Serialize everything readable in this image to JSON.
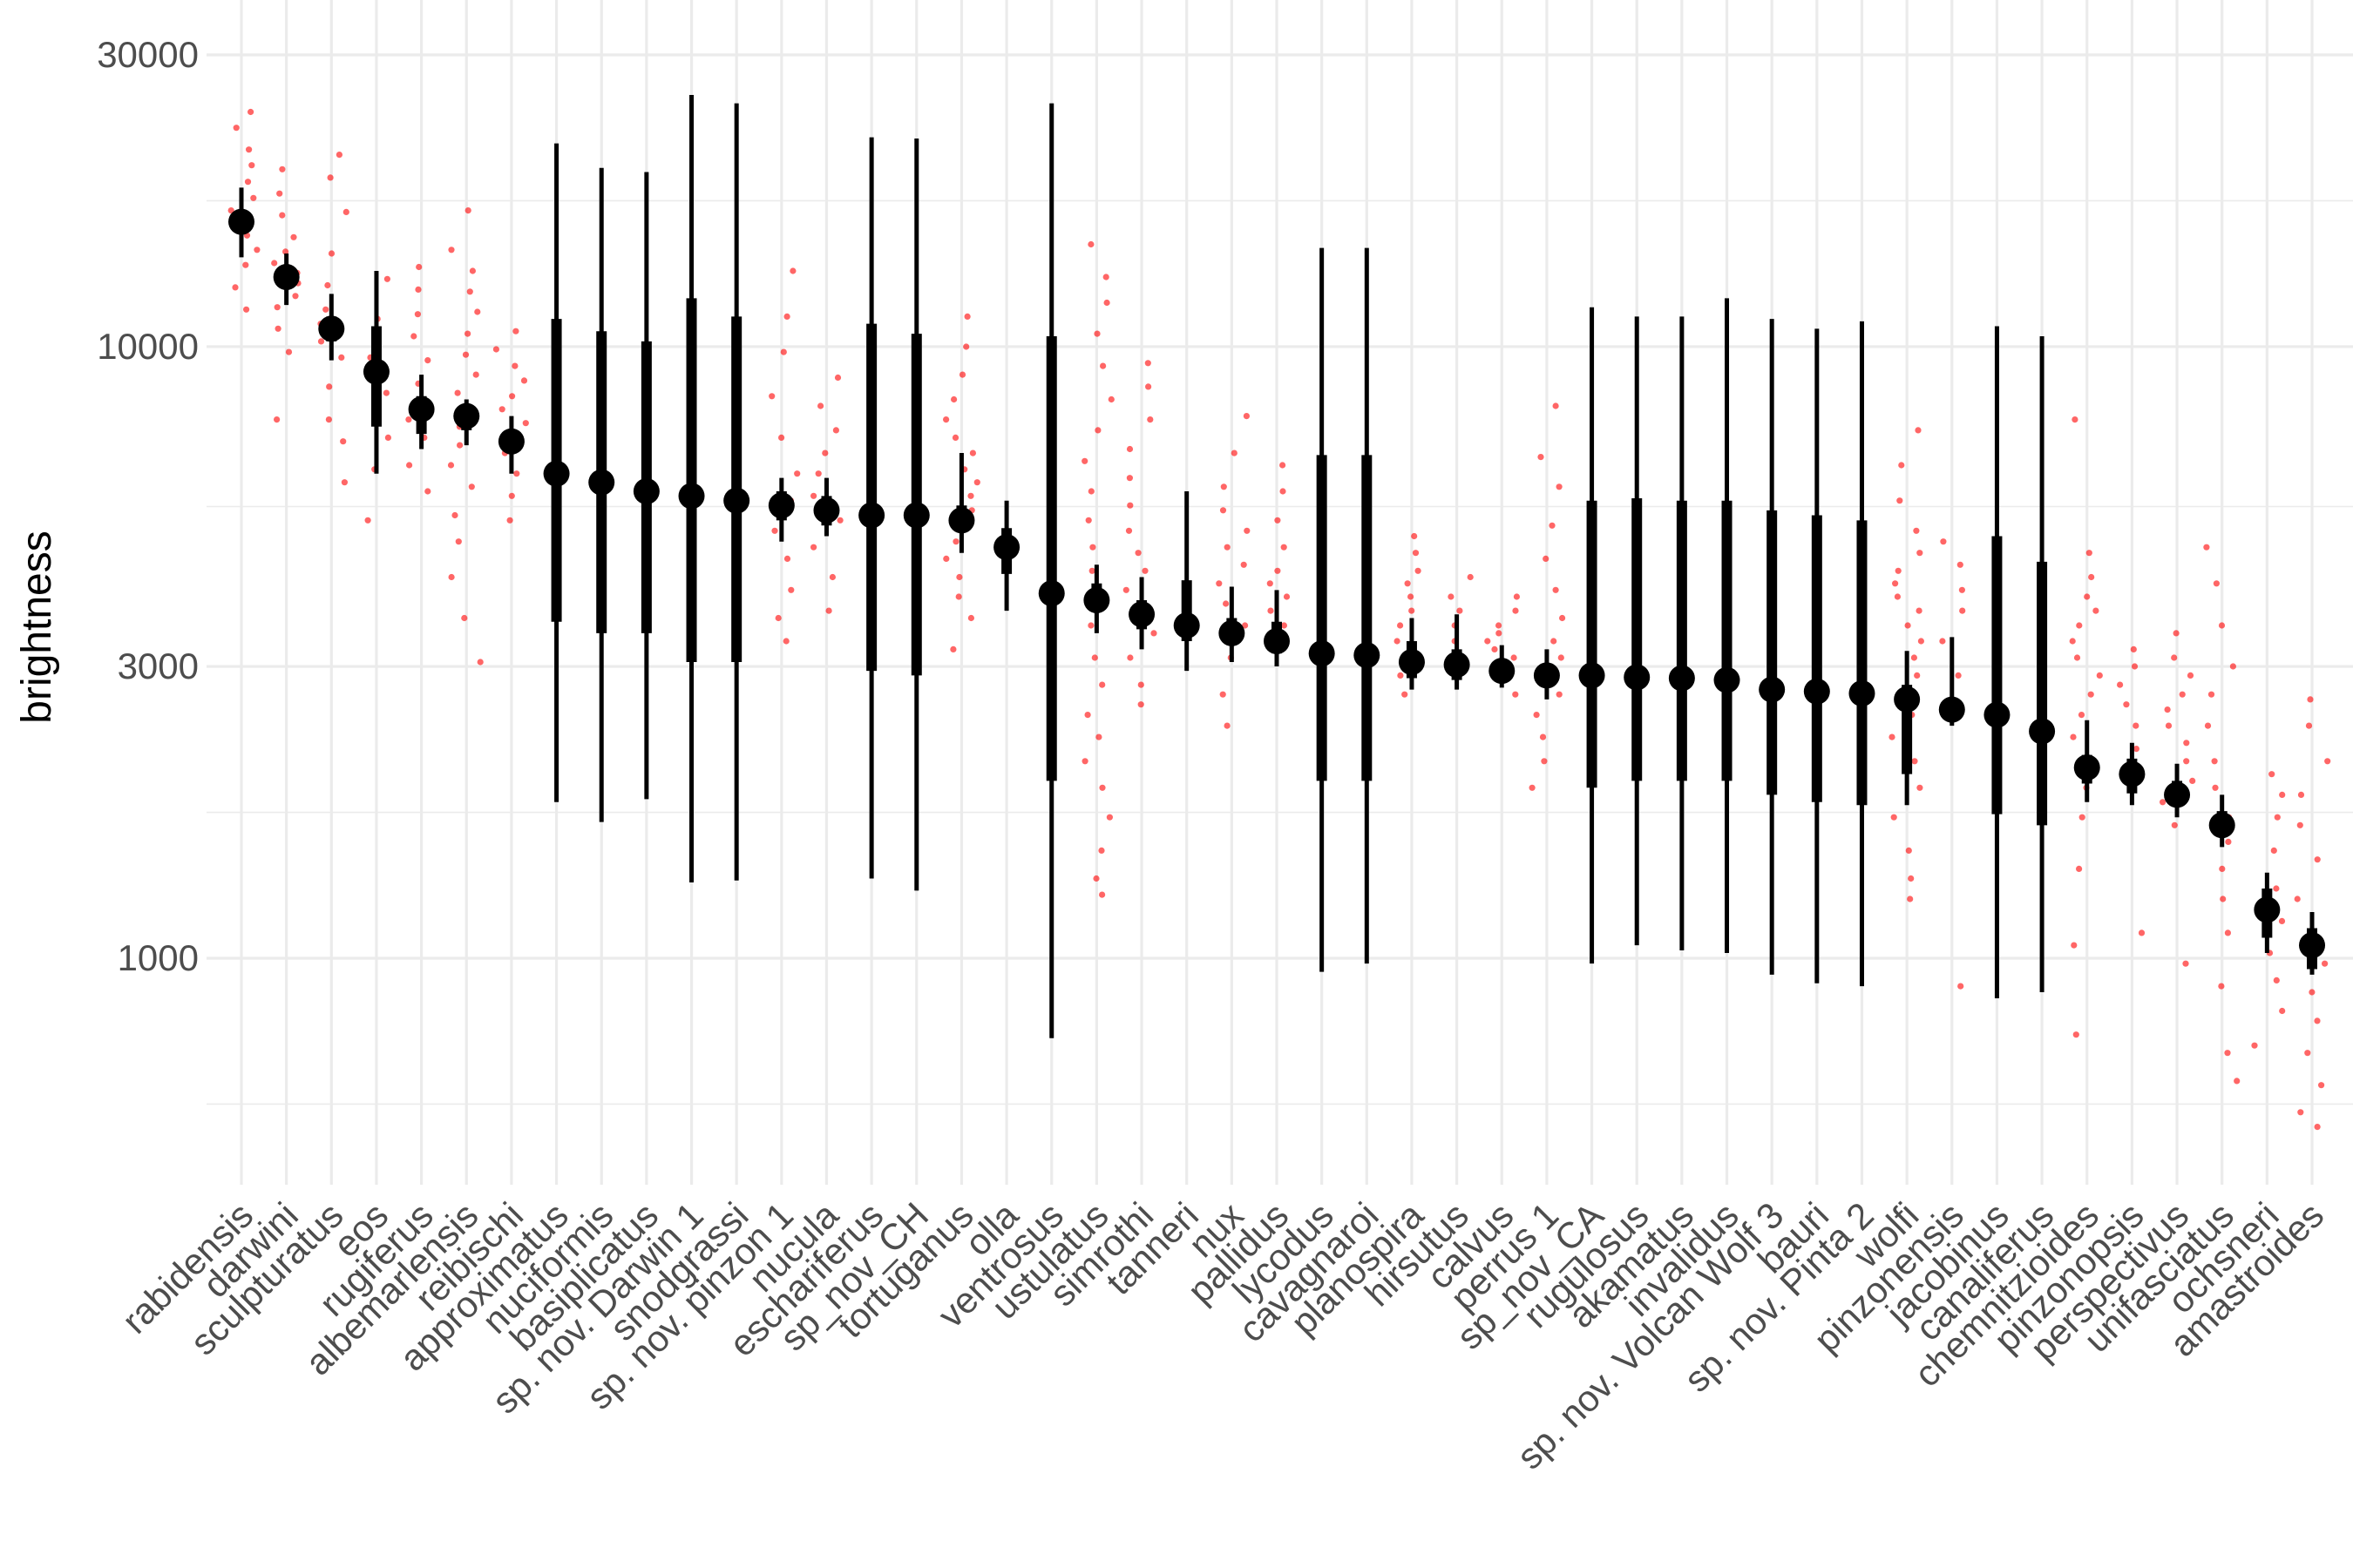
{
  "chart_data": {
    "type": "scatter",
    "title": "",
    "xlabel": "",
    "ylabel": "brightness",
    "y_scale": "log10",
    "ylim": [
      420,
      38000
    ],
    "y_ticks": [
      1000,
      3000,
      10000,
      30000
    ],
    "y_tick_labels": [
      "1000",
      "3000",
      "10000",
      "30000"
    ],
    "grid": true,
    "legend": "none",
    "colors": {
      "points": "#ff0000",
      "summary": "#000000",
      "grid": "#ebebeb",
      "tick_text": "#4d4d4d"
    },
    "categories": [
      "rabidensis",
      "darwini",
      "sculpturatus",
      "eos",
      "rugiferus",
      "albemarlensis",
      "reibischi",
      "approximatus",
      "nuciformis",
      "basiplicatus",
      "sp. nov. Darwin 1",
      "snodgrassi",
      "sp. nov. pinzon 1",
      "nucula",
      "eschariferus",
      "sp_nov_CH",
      "tortuganus",
      "olla",
      "ventrosus",
      "ustulatus",
      "simrothi",
      "tanneri",
      "nux",
      "pallidus",
      "lycodus",
      "cavagnaroi",
      "planospira",
      "hirsutus",
      "calvus",
      "perrus 1",
      "sp_nov_CA",
      "rugulosus",
      "akamatus",
      "invalidus",
      "sp. nov. Volcan Wolf 3",
      "bauri",
      "sp. nov. Pinta 2",
      "wolfi",
      "pinzonensis",
      "jacobinus",
      "canaliferus",
      "chemnitzioides",
      "pinzonopsis",
      "perspectivus",
      "unifasciatus",
      "ochsneri",
      "amastroides"
    ],
    "summary": {
      "point": [
        16000,
        13000,
        10700,
        9100,
        7900,
        7700,
        7000,
        6200,
        6000,
        5800,
        5700,
        5600,
        5500,
        5400,
        5300,
        5300,
        5200,
        4700,
        3950,
        3850,
        3650,
        3500,
        3400,
        3300,
        3150,
        3130,
        3050,
        3020,
        2950,
        2900,
        2900,
        2880,
        2870,
        2850,
        2750,
        2730,
        2710,
        2650,
        2550,
        2500,
        2350,
        2050,
        2000,
        1850,
        1650,
        1200,
        1050
      ],
      "inner_low": [
        15300,
        12500,
        10200,
        7400,
        7200,
        7300,
        6700,
        3550,
        3400,
        3400,
        3050,
        3050,
        5200,
        5100,
        2950,
        2900,
        5000,
        4250,
        1950,
        3700,
        3450,
        3300,
        3250,
        3150,
        1950,
        1950,
        2870,
        2850,
        2860,
        2780,
        1900,
        1950,
        1950,
        1950,
        1850,
        1800,
        1780,
        2000,
        2450,
        1720,
        1650,
        1930,
        1860,
        1780,
        1580,
        1080,
        960
      ],
      "inner_high": [
        16500,
        13500,
        11200,
        10800,
        8300,
        7900,
        7200,
        11100,
        10600,
        10200,
        12000,
        11200,
        5800,
        5700,
        10900,
        10500,
        5500,
        5050,
        10400,
        4100,
        3850,
        4150,
        3600,
        3550,
        6650,
        6650,
        3300,
        3200,
        3060,
        3000,
        5600,
        5650,
        5600,
        5600,
        5400,
        5300,
        5200,
        2800,
        2650,
        4900,
        4450,
        2150,
        2120,
        1950,
        1740,
        1300,
        1120
      ],
      "whisker_low": [
        14000,
        11700,
        9500,
        6200,
        6800,
        6900,
        6200,
        1800,
        1670,
        1820,
        1330,
        1340,
        4800,
        4900,
        1350,
        1290,
        4600,
        3700,
        740,
        3400,
        3200,
        2950,
        3050,
        3000,
        950,
        980,
        2750,
        2750,
        2770,
        2650,
        980,
        1050,
        1030,
        1020,
        940,
        910,
        900,
        1780,
        2400,
        860,
        880,
        1800,
        1780,
        1700,
        1520,
        1020,
        940
      ],
      "whisker_high": [
        18200,
        14200,
        12200,
        13300,
        9000,
        8200,
        7700,
        21500,
        19600,
        19300,
        25800,
        25000,
        6100,
        6100,
        22000,
        21900,
        6700,
        5600,
        25000,
        4400,
        4200,
        5800,
        4050,
        4000,
        14500,
        14500,
        3600,
        3650,
        3250,
        3200,
        11600,
        11200,
        11200,
        12000,
        11100,
        10700,
        11000,
        3180,
        3350,
        10800,
        10400,
        2450,
        2250,
        2080,
        1850,
        1380,
        1190
      ]
    },
    "observations": [
      {
        "category": "rabidensis",
        "values": [
          11500,
          12500,
          13600,
          14400,
          15200,
          16000,
          16700,
          17500,
          18600,
          19800,
          21000,
          22800,
          24200
        ]
      },
      {
        "category": "darwini",
        "values": [
          7600,
          9800,
          10700,
          11600,
          12100,
          12700,
          13200,
          13700,
          14300,
          15100,
          16400,
          17800,
          19500
        ]
      },
      {
        "category": "sculpturatus",
        "values": [
          6000,
          7000,
          7600,
          8600,
          9600,
          10200,
          10900,
          11500,
          12600,
          14200,
          16600,
          18900,
          20600
        ]
      },
      {
        "category": "eos",
        "values": [
          5200,
          6300,
          7100,
          8400,
          9600,
          11100,
          12900
        ]
      },
      {
        "category": "rugiferus",
        "values": [
          5800,
          6400,
          7100,
          7600,
          8100,
          8700,
          9500,
          10400,
          11300,
          12400,
          13500
        ]
      },
      {
        "category": "albemarlensis",
        "values": [
          3050,
          3600,
          4200,
          4800,
          5300,
          5900,
          6400,
          6900,
          7400,
          7900,
          8400,
          9000,
          9700,
          10500,
          11400,
          12300,
          13300,
          14400,
          16700
        ]
      },
      {
        "category": "reibischi",
        "values": [
          5200,
          5700,
          6200,
          6700,
          7100,
          7500,
          7900,
          8300,
          8800,
          9300,
          9900,
          10600
        ]
      },
      {
        "category": "sp. nov. pinzon 1",
        "values": [
          3300,
          3600,
          4000,
          4500,
          5000,
          5600,
          6200,
          7100,
          8300,
          9800,
          11200,
          13300
        ]
      },
      {
        "category": "nucula",
        "values": [
          3700,
          4200,
          4700,
          5200,
          5700,
          6200,
          6700,
          7300,
          8000,
          8900
        ]
      },
      {
        "category": "tortuganus",
        "values": [
          3200,
          3600,
          3900,
          4200,
          4500,
          4800,
          5100,
          5400,
          5700,
          6000,
          6300,
          6700,
          7100,
          7600,
          8200,
          9000,
          10000,
          11200
        ]
      },
      {
        "category": "ustulatus",
        "values": [
          1270,
          1350,
          1500,
          1700,
          1900,
          2100,
          2300,
          2500,
          2800,
          3100,
          3500,
          3900,
          4300,
          4700,
          5200,
          5800,
          6500,
          7300,
          8200,
          9300,
          10500,
          11800,
          13000,
          14700
        ]
      },
      {
        "category": "simrothi",
        "values": [
          2600,
          2800,
          3100,
          3400,
          3700,
          4000,
          4300,
          4600,
          5000,
          5500,
          6100,
          6800,
          7600,
          8600,
          9400
        ]
      },
      {
        "category": "nux",
        "values": [
          2400,
          2700,
          3100,
          3500,
          3800,
          4100,
          4400,
          4700,
          5000,
          5400,
          5900,
          6700,
          7700
        ]
      },
      {
        "category": "pallidus",
        "values": [
          3300,
          3500,
          3700,
          3900,
          4100,
          4300,
          4700,
          5200,
          5800,
          6400
        ]
      },
      {
        "category": "planospira",
        "values": [
          2700,
          2900,
          3100,
          3300,
          3500,
          3700,
          3900,
          4100,
          4300,
          4600,
          4900
        ]
      },
      {
        "category": "hirsutus",
        "values": [
          3100,
          3300,
          3500,
          3700,
          3900,
          4200
        ]
      },
      {
        "category": "calvus",
        "values": [
          2700,
          2900,
          3000,
          3100,
          3200,
          3300,
          3400,
          3500,
          3700,
          3900
        ]
      },
      {
        "category": "perrus 1",
        "values": [
          1900,
          2100,
          2300,
          2500,
          2700,
          2900,
          3100,
          3300,
          3600,
          4000,
          4500,
          5100,
          5900,
          6600,
          8000
        ]
      },
      {
        "category": "wolfi",
        "values": [
          1250,
          1350,
          1500,
          1700,
          1900,
          2100,
          2300,
          2500,
          2700,
          2900,
          3100,
          3300,
          3500,
          3700,
          3900,
          4100,
          4300,
          4600,
          5000,
          5600,
          6400,
          7300
        ]
      },
      {
        "category": "pinzonensis",
        "values": [
          900,
          2500,
          2900,
          3300,
          3700,
          4000,
          4400,
          4800
        ]
      },
      {
        "category": "chemnitzioides",
        "values": [
          750,
          1050,
          1400,
          1700,
          1900,
          2100,
          2300,
          2500,
          2700,
          2900,
          3100,
          3300,
          3500,
          3700,
          3900,
          4200,
          4600,
          7600
        ]
      },
      {
        "category": "pinzonopsis",
        "values": [
          1100,
          2000,
          2200,
          2400,
          2600,
          2800,
          3000,
          3200
        ]
      },
      {
        "category": "perspectivus",
        "values": [
          980,
          1650,
          1800,
          1950,
          2100,
          2250,
          2400,
          2550,
          2700,
          2900,
          3100,
          3400
        ]
      },
      {
        "category": "unifasciatus",
        "values": [
          630,
          700,
          900,
          1100,
          1250,
          1400,
          1550,
          1700,
          1900,
          2100,
          2400,
          2700,
          3000,
          3500,
          4100,
          4700
        ]
      },
      {
        "category": "ochsneri",
        "values": [
          720,
          820,
          920,
          1020,
          1150,
          1300,
          1500,
          1700,
          1850,
          2000
        ]
      },
      {
        "category": "amastroides",
        "values": [
          530,
          560,
          620,
          700,
          790,
          880,
          980,
          1100,
          1250,
          1450,
          1650,
          1850,
          2100,
          2400,
          2650
        ]
      }
    ]
  }
}
